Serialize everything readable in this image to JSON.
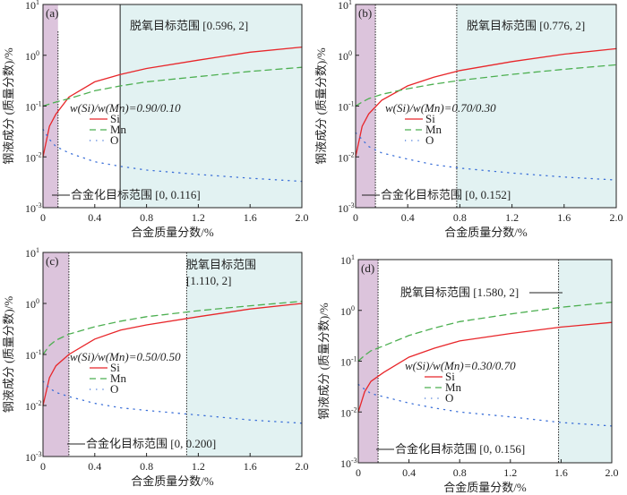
{
  "chart_data": [
    {
      "type": "line",
      "panel": "(a)",
      "xlabel": "合金质量分数/%",
      "ylabel": "钢液成分 (质量分数)/%",
      "xlim": [
        0,
        2.0
      ],
      "ylim": [
        0.001,
        10
      ],
      "yscale": "log",
      "x_ticks": [
        "0",
        "0.4",
        "0.8",
        "1.2",
        "1.6",
        "2.0"
      ],
      "y_ticks": [
        {
          "base": "10",
          "exp": "-3"
        },
        {
          "base": "10",
          "exp": "-2"
        },
        {
          "base": "10",
          "exp": "-1"
        },
        {
          "base": "10",
          "exp": "0"
        },
        {
          "base": "10",
          "exp": "1"
        }
      ],
      "ratio_label": "w(Si)/w(Mn)=0.90/0.10",
      "legend": [
        "Si",
        "Mn",
        "O"
      ],
      "alloying_range": [
        0,
        0.116
      ],
      "alloying_label": "合金化目标范围 [0, 0.116]",
      "deox_range": [
        0.596,
        2
      ],
      "deox_label": "脱氧目标范围 [0.596, 2]",
      "deox_label2": "",
      "x": [
        0,
        0.05,
        0.1,
        0.2,
        0.4,
        0.6,
        0.8,
        1.2,
        1.6,
        2.0
      ],
      "series": [
        {
          "name": "Si",
          "values": [
            0.01,
            0.04,
            0.07,
            0.15,
            0.3,
            0.42,
            0.55,
            0.8,
            1.15,
            1.45
          ]
        },
        {
          "name": "Mn",
          "values": [
            0.1,
            0.11,
            0.12,
            0.14,
            0.2,
            0.25,
            0.3,
            0.38,
            0.48,
            0.58
          ]
        },
        {
          "name": "O",
          "values": [
            0.035,
            0.022,
            0.016,
            0.012,
            0.008,
            0.0065,
            0.0055,
            0.0045,
            0.0038,
            0.0033
          ]
        }
      ]
    },
    {
      "type": "line",
      "panel": "(b)",
      "xlabel": "合金质量分数/%",
      "ylabel": "钢液成分 (质量分数)/%",
      "xlim": [
        0,
        2.0
      ],
      "ylim": [
        0.001,
        10
      ],
      "yscale": "log",
      "x_ticks": [
        "0",
        "0.4",
        "0.8",
        "1.2",
        "1.6",
        "2.0"
      ],
      "y_ticks": [
        {
          "base": "10",
          "exp": "-3"
        },
        {
          "base": "10",
          "exp": "-2"
        },
        {
          "base": "10",
          "exp": "-1"
        },
        {
          "base": "10",
          "exp": "0"
        },
        {
          "base": "10",
          "exp": "1"
        }
      ],
      "ratio_label": "w(Si)/w(Mn)=0.70/0.30",
      "legend": [
        "Si",
        "Mn",
        "O"
      ],
      "alloying_range": [
        0,
        0.152
      ],
      "alloying_label": "合金化目标范围 [0, 0.152]",
      "deox_range": [
        0.776,
        2
      ],
      "deox_label": "脱氧目标范围 [0.776, 2]",
      "deox_label2": "",
      "x": [
        0,
        0.05,
        0.1,
        0.2,
        0.4,
        0.6,
        0.8,
        1.2,
        1.6,
        2.0
      ],
      "series": [
        {
          "name": "Si",
          "values": [
            0.01,
            0.04,
            0.07,
            0.13,
            0.25,
            0.37,
            0.5,
            0.75,
            1.05,
            1.35
          ]
        },
        {
          "name": "Mn",
          "values": [
            0.1,
            0.12,
            0.14,
            0.17,
            0.22,
            0.27,
            0.32,
            0.42,
            0.53,
            0.65
          ]
        },
        {
          "name": "O",
          "values": [
            0.03,
            0.022,
            0.016,
            0.012,
            0.009,
            0.007,
            0.006,
            0.0048,
            0.004,
            0.0035
          ]
        }
      ]
    },
    {
      "type": "line",
      "panel": "(c)",
      "xlabel": "合金质量分数/%",
      "ylabel": "钢液成分 (质量分数)/%",
      "xlim": [
        0,
        2.0
      ],
      "ylim": [
        0.001,
        10
      ],
      "yscale": "log",
      "x_ticks": [
        "0",
        "0.4",
        "0.8",
        "1.2",
        "1.6",
        "2.0"
      ],
      "y_ticks": [
        {
          "base": "10",
          "exp": "-3"
        },
        {
          "base": "10",
          "exp": "-2"
        },
        {
          "base": "10",
          "exp": "-1"
        },
        {
          "base": "10",
          "exp": "0"
        },
        {
          "base": "10",
          "exp": "1"
        }
      ],
      "ratio_label": "w(Si)/w(Mn)=0.50/0.50",
      "legend": [
        "Si",
        "Mn",
        "O"
      ],
      "alloying_range": [
        0,
        0.2
      ],
      "alloying_label": "合金化目标范围 [0, 0.200]",
      "deox_range": [
        1.11,
        2
      ],
      "deox_label": "脱氧目标范围",
      "deox_label2": "[1.110, 2]",
      "x": [
        0,
        0.05,
        0.1,
        0.2,
        0.4,
        0.6,
        0.8,
        1.2,
        1.6,
        2.0
      ],
      "series": [
        {
          "name": "Si",
          "values": [
            0.01,
            0.035,
            0.06,
            0.1,
            0.2,
            0.3,
            0.38,
            0.55,
            0.78,
            1.0
          ]
        },
        {
          "name": "Mn",
          "values": [
            0.1,
            0.15,
            0.19,
            0.25,
            0.35,
            0.45,
            0.55,
            0.72,
            0.9,
            1.1
          ]
        },
        {
          "name": "O",
          "values": [
            0.03,
            0.022,
            0.018,
            0.015,
            0.011,
            0.009,
            0.008,
            0.0065,
            0.0052,
            0.0045
          ]
        }
      ]
    },
    {
      "type": "line",
      "panel": "(d)",
      "xlabel": "合金质量分数/%",
      "ylabel": "钢液成分 (质量分数)/%",
      "xlim": [
        0,
        2.0
      ],
      "ylim": [
        0.001,
        10
      ],
      "yscale": "log",
      "x_ticks": [
        "0",
        "0.4",
        "0.8",
        "1.2",
        "1.6",
        "2.0"
      ],
      "y_ticks": [
        {
          "base": "10",
          "exp": "-3"
        },
        {
          "base": "10",
          "exp": "-2"
        },
        {
          "base": "10",
          "exp": "-1"
        },
        {
          "base": "10",
          "exp": "0"
        },
        {
          "base": "10",
          "exp": "1"
        }
      ],
      "ratio_label": "w(Si)/w(Mn)=0.30/0.70",
      "legend": [
        "Si",
        "Mn",
        "O"
      ],
      "alloying_range": [
        0,
        0.156
      ],
      "alloying_label": "合金化目标范围 [0, 0.156]",
      "deox_range": [
        1.58,
        2
      ],
      "deox_label": "脱氧目标范围 [1.580, 2]",
      "deox_label2": "",
      "x": [
        0,
        0.05,
        0.1,
        0.2,
        0.4,
        0.6,
        0.8,
        1.2,
        1.6,
        2.0
      ],
      "series": [
        {
          "name": "Si",
          "values": [
            0.01,
            0.025,
            0.04,
            0.06,
            0.12,
            0.18,
            0.25,
            0.35,
            0.47,
            0.58
          ]
        },
        {
          "name": "Mn",
          "values": [
            0.1,
            0.13,
            0.16,
            0.2,
            0.32,
            0.45,
            0.6,
            0.85,
            1.15,
            1.45
          ]
        },
        {
          "name": "O",
          "values": [
            0.035,
            0.028,
            0.023,
            0.02,
            0.015,
            0.012,
            0.01,
            0.008,
            0.0062,
            0.0053
          ]
        }
      ]
    }
  ],
  "colors": {
    "Si": "#e8262a",
    "Mn": "#4caf50",
    "O": "#3a6fd8",
    "alloying_fill": "#dcc4dc",
    "deox_fill": "#e2f2f2"
  }
}
